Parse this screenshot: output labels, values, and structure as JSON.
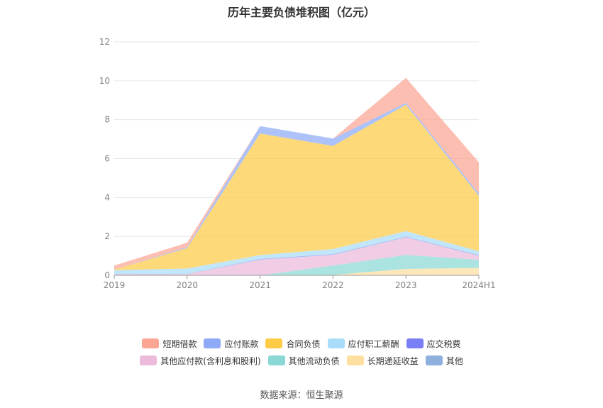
{
  "title": "历年主要负债堆积图（亿元）",
  "source": "数据来源：恒生聚源",
  "chart_data": {
    "type": "area",
    "stacked": true,
    "title": "历年主要负债堆积图（亿元）",
    "xlabel": "",
    "ylabel": "",
    "ylim": [
      0,
      12
    ],
    "y_ticks": [
      0,
      2,
      4,
      6,
      8,
      10,
      12
    ],
    "x": [
      "2019",
      "2020",
      "2021",
      "2022",
      "2023",
      "2024H1"
    ],
    "grid": true,
    "legend_position": "bottom",
    "series": [
      {
        "name": "长期递延收益",
        "color": "#fedfa0",
        "values": [
          0.0,
          0.0,
          0.0,
          0.02,
          0.33,
          0.38
        ]
      },
      {
        "name": "其他流动负债",
        "color": "#8ad8d6",
        "values": [
          0.0,
          0.0,
          0.0,
          0.48,
          0.72,
          0.42
        ]
      },
      {
        "name": "其他应付款(含利息和股利)",
        "color": "#ecbadb",
        "values": [
          0.05,
          0.06,
          0.8,
          0.55,
          0.9,
          0.2
        ]
      },
      {
        "name": "其他",
        "color": "#8fb0dc",
        "values": [
          0.02,
          0.02,
          0.02,
          0.02,
          0.02,
          0.02
        ]
      },
      {
        "name": "应交税费",
        "color": "#7b7ff5",
        "values": [
          0.0,
          0.0,
          0.02,
          0.02,
          0.02,
          0.02
        ]
      },
      {
        "name": "应付职工薪酬",
        "color": "#a9dcf8",
        "values": [
          0.2,
          0.27,
          0.2,
          0.26,
          0.28,
          0.2
        ]
      },
      {
        "name": "合同负债",
        "color": "#fecb46",
        "values": [
          0.03,
          1.05,
          6.25,
          5.3,
          6.5,
          2.85
        ]
      },
      {
        "name": "应付账款",
        "color": "#8eaaf7",
        "values": [
          0.0,
          0.05,
          0.38,
          0.38,
          0.1,
          0.12
        ]
      },
      {
        "name": "短期借款",
        "color": "#fca594",
        "values": [
          0.2,
          0.23,
          0.0,
          0.0,
          1.28,
          1.6
        ]
      }
    ]
  },
  "legend": {
    "row1": [
      "短期借款",
      "应付账款",
      "合同负债",
      "应付职工薪酬",
      "应交税费"
    ],
    "row2": [
      "其他应付款(含利息和股利)",
      "其他流动负债",
      "长期递延收益",
      "其他"
    ]
  },
  "legend_colors": {
    "短期借款": "#fca594",
    "应付账款": "#8eaaf7",
    "合同负债": "#fecb46",
    "应付职工薪酬": "#a9dcf8",
    "应交税费": "#7b7ff5",
    "其他应付款(含利息和股利)": "#ecbadb",
    "其他流动负债": "#8ad8d6",
    "长期递延收益": "#fedfa0",
    "其他": "#8fb0dc"
  }
}
